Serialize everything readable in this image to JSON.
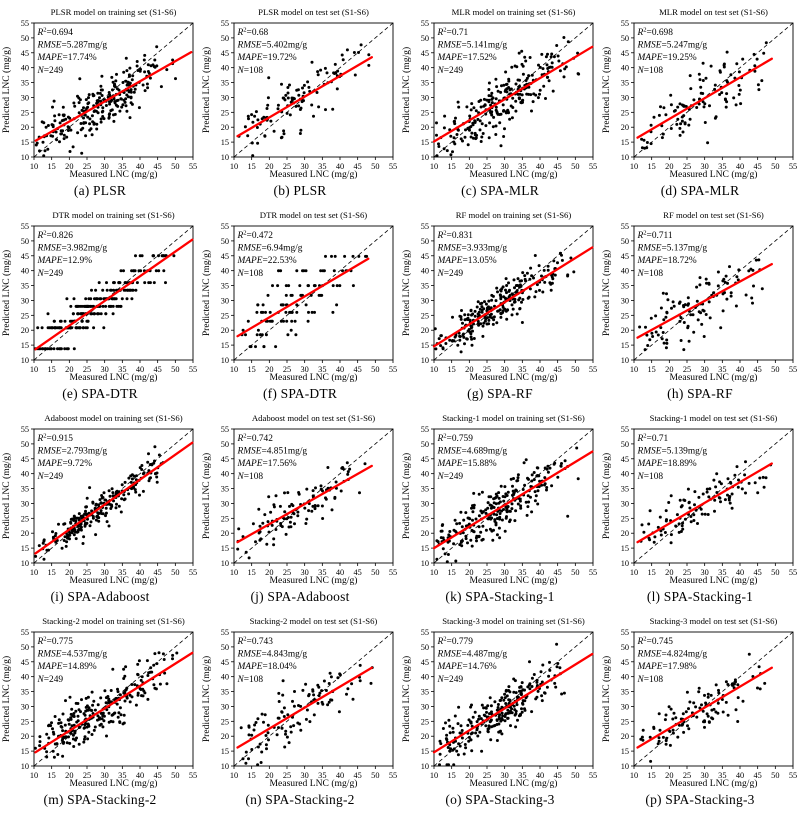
{
  "figure": {
    "xlabel": "Measured LNC (mg/g)",
    "ylabel": "Predicted LNC (mg/g)",
    "axis": {
      "min": 10,
      "max": 55,
      "step": 5
    },
    "stats_labels": {
      "r2": "R",
      "r2_sup": "2",
      "rmse": "RMSE",
      "mape": "MAPE",
      "n": "N"
    },
    "colors": {
      "points": "#000000",
      "fit_line": "#ff0000",
      "identity_line": "#000000",
      "frame": "#000000",
      "background": "#ffffff"
    }
  },
  "chart_data": [
    {
      "type": "scatter",
      "id": "a",
      "title": "PLSR model on training set (S1-S6)",
      "caption": "(a) PLSR",
      "stats": {
        "r2": "0.694",
        "rmse": "5.287mg/g",
        "mape": "17.74%",
        "n": "249"
      },
      "xlim": [
        10,
        55
      ],
      "ylim": [
        10,
        55
      ],
      "n_points": 249,
      "seed": 101,
      "fit": {
        "x1": 10.5,
        "y1": 15.5,
        "x2": 54.5,
        "y2": 45.2
      },
      "point_x_range": [
        10.3,
        50.5
      ],
      "noise": 4.7,
      "bands": null
    },
    {
      "type": "scatter",
      "id": "b",
      "title": "PLSR model on test set (S1-S6)",
      "caption": "(b) PLSR",
      "stats": {
        "r2": "0.68",
        "rmse": "5.402mg/g",
        "mape": "19.72%",
        "n": "108"
      },
      "xlim": [
        10,
        55
      ],
      "ylim": [
        10,
        55
      ],
      "n_points": 108,
      "seed": 102,
      "fit": {
        "x1": 11,
        "y1": 17,
        "x2": 49,
        "y2": 43.5
      },
      "point_x_range": [
        11,
        49.3
      ],
      "noise": 4.9,
      "bands": null
    },
    {
      "type": "scatter",
      "id": "c",
      "title": "MLR model on training set (S1-S6)",
      "caption": "(c) SPA-MLR",
      "stats": {
        "r2": "0.71",
        "rmse": "5.141mg/g",
        "mape": "17.52%",
        "n": "249"
      },
      "xlim": [
        10,
        55
      ],
      "ylim": [
        10,
        55
      ],
      "n_points": 249,
      "seed": 103,
      "fit": {
        "x1": 10,
        "y1": 15.2,
        "x2": 54.8,
        "y2": 47
      },
      "point_x_range": [
        10.3,
        51
      ],
      "noise": 4.6,
      "bands": null
    },
    {
      "type": "scatter",
      "id": "d",
      "title": "MLR model on test set (S1-S6)",
      "caption": "(d) SPA-MLR",
      "stats": {
        "r2": "0.698",
        "rmse": "5.247mg/g",
        "mape": "19.25%",
        "n": "108"
      },
      "xlim": [
        10,
        55
      ],
      "ylim": [
        10,
        55
      ],
      "n_points": 108,
      "seed": 104,
      "fit": {
        "x1": 11,
        "y1": 16.5,
        "x2": 49,
        "y2": 43
      },
      "point_x_range": [
        11,
        49.3
      ],
      "noise": 4.8,
      "bands": null
    },
    {
      "type": "scatter",
      "id": "e",
      "title": "DTR model on training set (S1-S6)",
      "caption": "(e) SPA-DTR",
      "stats": {
        "r2": "0.826",
        "rmse": "3.982mg/g",
        "mape": "12.9%",
        "n": "249"
      },
      "xlim": [
        10,
        55
      ],
      "ylim": [
        10,
        55
      ],
      "n_points": 249,
      "seed": 105,
      "fit": {
        "x1": 10.4,
        "y1": 13.6,
        "x2": 54.8,
        "y2": 50.4
      },
      "point_x_range": [
        10.3,
        50.5
      ],
      "noise": 3.4,
      "bands": [
        13.8,
        20.8,
        23.0,
        25.5,
        28.0,
        30.6,
        33.4,
        36.0,
        40.0,
        45.0
      ]
    },
    {
      "type": "scatter",
      "id": "f",
      "title": "DTR model on test set (S1-S6)",
      "caption": "(f) SPA-DTR",
      "stats": {
        "r2": "0.472",
        "rmse": "6.94mg/g",
        "mape": "22.53%",
        "n": "108"
      },
      "xlim": [
        10,
        55
      ],
      "ylim": [
        10,
        55
      ],
      "n_points": 108,
      "seed": 106,
      "fit": {
        "x1": 11,
        "y1": 18,
        "x2": 48,
        "y2": 44
      },
      "point_x_range": [
        11,
        49.3
      ],
      "noise": 6.2,
      "bands": [
        14.5,
        18.5,
        20.0,
        23.0,
        26.0,
        28.5,
        31.7,
        35.0,
        40.0,
        44.8
      ]
    },
    {
      "type": "scatter",
      "id": "g",
      "title": "RF model on training set (S1-S6)",
      "caption": "(g) SPA-RF",
      "stats": {
        "r2": "0.831",
        "rmse": "3.933mg/g",
        "mape": "13.05%",
        "n": "249"
      },
      "xlim": [
        10,
        55
      ],
      "ylim": [
        10,
        55
      ],
      "n_points": 249,
      "seed": 107,
      "fit": {
        "x1": 10,
        "y1": 14.6,
        "x2": 54.8,
        "y2": 47.8
      },
      "point_x_range": [
        10.3,
        51
      ],
      "noise": 3.5,
      "bands": null
    },
    {
      "type": "scatter",
      "id": "h",
      "title": "RF model on test set (S1-S6)",
      "caption": "(h) SPA-RF",
      "stats": {
        "r2": "0.711",
        "rmse": "5.137mg/g",
        "mape": "18.72%",
        "n": "108"
      },
      "xlim": [
        10,
        55
      ],
      "ylim": [
        10,
        55
      ],
      "n_points": 108,
      "seed": 108,
      "fit": {
        "x1": 11,
        "y1": 17.5,
        "x2": 49,
        "y2": 42.2
      },
      "point_x_range": [
        11,
        49.3
      ],
      "noise": 4.7,
      "bands": null
    },
    {
      "type": "scatter",
      "id": "i",
      "title": "Adaboost model on training set (S1-S6)",
      "caption": "(i) SPA-Adaboost",
      "stats": {
        "r2": "0.915",
        "rmse": "2.793mg/g",
        "mape": "9.72%",
        "n": "249"
      },
      "xlim": [
        10,
        55
      ],
      "ylim": [
        10,
        55
      ],
      "n_points": 249,
      "seed": 109,
      "fit": {
        "x1": 10.4,
        "y1": 13.2,
        "x2": 54.8,
        "y2": 50.4
      },
      "point_x_range": [
        10.3,
        51
      ],
      "noise": 2.6,
      "bands": null
    },
    {
      "type": "scatter",
      "id": "j",
      "title": "Adaboost model on test set (S1-S6)",
      "caption": "(j) SPA-Adaboost",
      "stats": {
        "r2": "0.742",
        "rmse": "4.851mg/g",
        "mape": "17.56%",
        "n": "108"
      },
      "xlim": [
        10,
        55
      ],
      "ylim": [
        10,
        55
      ],
      "n_points": 108,
      "seed": 110,
      "fit": {
        "x1": 11,
        "y1": 17,
        "x2": 49,
        "y2": 42.6
      },
      "point_x_range": [
        11,
        49.3
      ],
      "noise": 4.5,
      "bands": null
    },
    {
      "type": "scatter",
      "id": "k",
      "title": "Stacking-1 model on training set (S1-S6)",
      "caption": "(k) SPA-Stacking-1",
      "stats": {
        "r2": "0.759",
        "rmse": "4.689mg/g",
        "mape": "15.88%",
        "n": "249"
      },
      "xlim": [
        10,
        55
      ],
      "ylim": [
        10,
        55
      ],
      "n_points": 249,
      "seed": 111,
      "fit": {
        "x1": 10,
        "y1": 15,
        "x2": 54.8,
        "y2": 47.4
      },
      "point_x_range": [
        10.3,
        51
      ],
      "noise": 4.2,
      "bands": null
    },
    {
      "type": "scatter",
      "id": "l",
      "title": "Stacking-1 model on test set (S1-S6)",
      "caption": "(l) SPA-Stacking-1",
      "stats": {
        "r2": "0.71",
        "rmse": "5.139mg/g",
        "mape": "18.89%",
        "n": "108"
      },
      "xlim": [
        10,
        55
      ],
      "ylim": [
        10,
        55
      ],
      "n_points": 108,
      "seed": 112,
      "fit": {
        "x1": 11,
        "y1": 17,
        "x2": 49,
        "y2": 43.4
      },
      "point_x_range": [
        11,
        49.3
      ],
      "noise": 4.7,
      "bands": null
    },
    {
      "type": "scatter",
      "id": "m",
      "title": "Stacking-2 model on training set (S1-S6)",
      "caption": "(m) SPA-Stacking-2",
      "stats": {
        "r2": "0.775",
        "rmse": "4.537mg/g",
        "mape": "14.89%",
        "n": "249"
      },
      "xlim": [
        10,
        55
      ],
      "ylim": [
        10,
        55
      ],
      "n_points": 249,
      "seed": 113,
      "fit": {
        "x1": 10.4,
        "y1": 14.6,
        "x2": 54.8,
        "y2": 48
      },
      "point_x_range": [
        10.3,
        51
      ],
      "noise": 4.1,
      "bands": null
    },
    {
      "type": "scatter",
      "id": "n",
      "title": "Stacking-2 model on test set (S1-S6)",
      "caption": "(n) SPA-Stacking-2",
      "stats": {
        "r2": "0.743",
        "rmse": "4.843mg/g",
        "mape": "18.04%",
        "n": "108"
      },
      "xlim": [
        10,
        55
      ],
      "ylim": [
        10,
        55
      ],
      "n_points": 108,
      "seed": 114,
      "fit": {
        "x1": 11,
        "y1": 16.2,
        "x2": 49,
        "y2": 43
      },
      "point_x_range": [
        11,
        49.3
      ],
      "noise": 4.4,
      "bands": null
    },
    {
      "type": "scatter",
      "id": "o",
      "title": "Stacking-3 model on training set (S1-S6)",
      "caption": "(o) SPA-Stacking-3",
      "stats": {
        "r2": "0.779",
        "rmse": "4.487mg/g",
        "mape": "14.76%",
        "n": "249"
      },
      "xlim": [
        10,
        55
      ],
      "ylim": [
        10,
        55
      ],
      "n_points": 249,
      "seed": 115,
      "fit": {
        "x1": 10,
        "y1": 14.6,
        "x2": 54.8,
        "y2": 47.6
      },
      "point_x_range": [
        10.3,
        51
      ],
      "noise": 4.1,
      "bands": null
    },
    {
      "type": "scatter",
      "id": "p",
      "title": "Stacking-3 model on test set (S1-S6)",
      "caption": "(p) SPA-Stacking-3",
      "stats": {
        "r2": "0.745",
        "rmse": "4.824mg/g",
        "mape": "17.98%",
        "n": "108"
      },
      "xlim": [
        10,
        55
      ],
      "ylim": [
        10,
        55
      ],
      "n_points": 108,
      "seed": 116,
      "fit": {
        "x1": 11,
        "y1": 16.2,
        "x2": 49,
        "y2": 43
      },
      "point_x_range": [
        11,
        49.3
      ],
      "noise": 4.4,
      "bands": null
    }
  ]
}
